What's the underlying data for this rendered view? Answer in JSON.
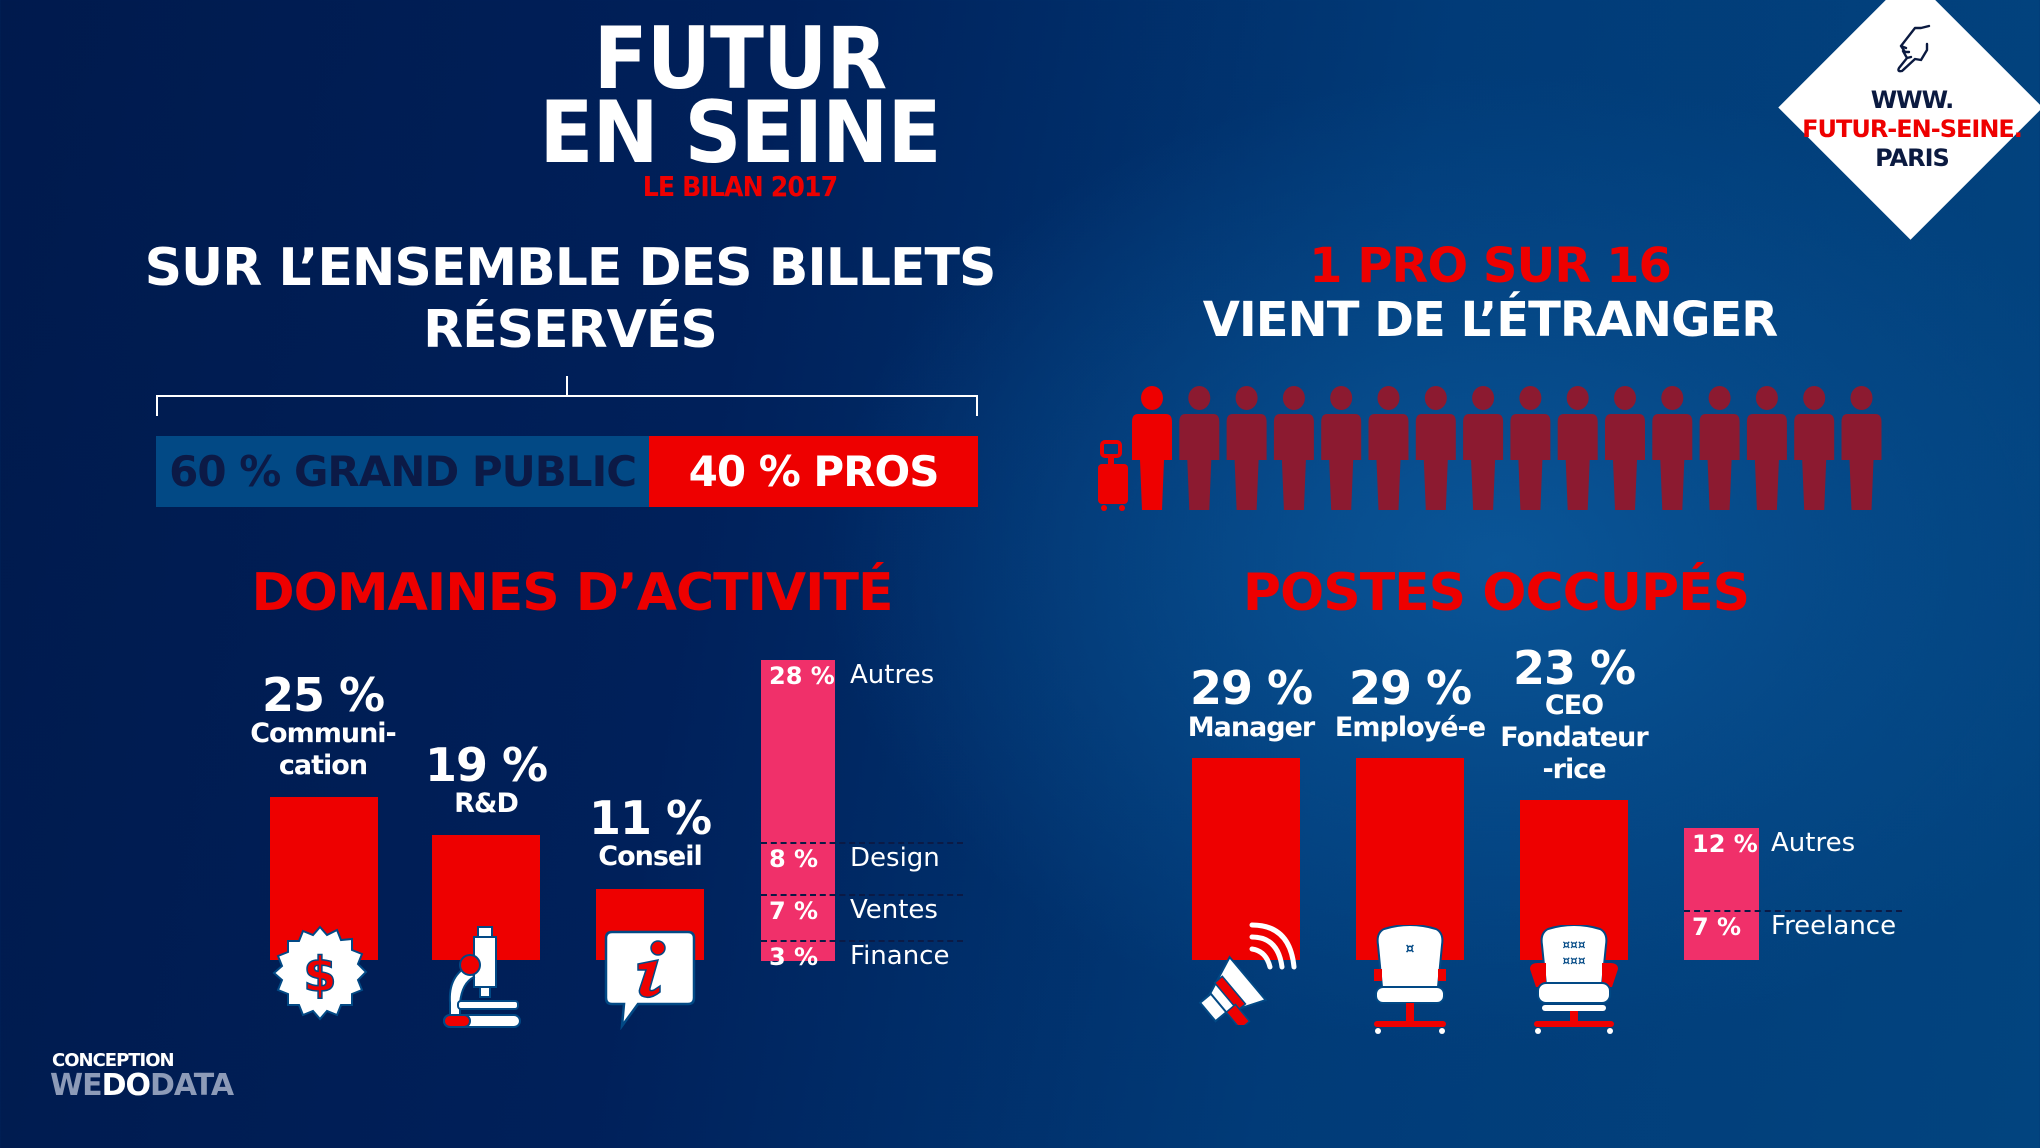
{
  "header": {
    "title_line_1": "FUTUR",
    "title_line_2": "EN SEINE",
    "subtitle": "LE BILAN 2017"
  },
  "website_badge": {
    "icon": "pointing-hand-icon",
    "line_1": "WWW.",
    "line_2": "FUTUR-EN-SEINE.",
    "line_3": "PARIS"
  },
  "billets": {
    "heading_line_1": "SUR L’ENSEMBLE DES BILLETS",
    "heading_line_2": "RÉSERVÉS",
    "segments": [
      {
        "label": "60 % GRAND PUBLIC",
        "value": 60,
        "color": "#024985"
      },
      {
        "label": "40 % PROS",
        "value": 40,
        "color": "#ee0000"
      }
    ]
  },
  "foreign": {
    "line_1": "1 PRO SUR 16",
    "line_2": "VIENT DE L’ÉTRANGER",
    "highlighted": 1,
    "total": 16,
    "icon": "suitcase-icon",
    "colors": {
      "highlight": "#ee0000",
      "other": "#8c1a30"
    }
  },
  "domaines": {
    "heading": "DOMAINES D’ACTIVITÉ",
    "bars": [
      {
        "pct": "25 %",
        "label_lines": [
          "Communi-",
          "cation"
        ],
        "value": 25,
        "icon": "dollar-badge-icon"
      },
      {
        "pct": "19 %",
        "label_lines": [
          "R&D"
        ],
        "value": 19,
        "icon": "microscope-icon"
      },
      {
        "pct": "11 %",
        "label_lines": [
          "Conseil"
        ],
        "value": 11,
        "icon": "info-bubble-icon"
      }
    ],
    "stack": [
      {
        "pct": "28 %",
        "label": "Autres",
        "value": 28
      },
      {
        "pct": "8 %",
        "label": "Design",
        "value": 8
      },
      {
        "pct": "7 %",
        "label": "Ventes",
        "value": 7
      },
      {
        "pct": "3 %",
        "label": "Finance",
        "value": 3
      }
    ]
  },
  "postes": {
    "heading": "POSTES OCCUPÉS",
    "bars": [
      {
        "pct": "29 %",
        "label_lines": [
          "Manager"
        ],
        "value": 29,
        "icon": "megaphone-icon"
      },
      {
        "pct": "29 %",
        "label_lines": [
          "Employé-e"
        ],
        "value": 29,
        "icon": "office-chair-icon"
      },
      {
        "pct": "23 %",
        "label_lines": [
          "CEO",
          "Fondateur",
          "-rice"
        ],
        "value": 23,
        "icon": "executive-chair-icon"
      }
    ],
    "stack": [
      {
        "pct": "12 %",
        "label": "Autres",
        "value": 12
      },
      {
        "pct": "7 %",
        "label": "Freelance",
        "value": 7
      }
    ]
  },
  "credits": {
    "label": "CONCEPTION",
    "brand_parts": [
      "WE",
      "DO",
      "DATA"
    ]
  },
  "colors": {
    "red": "#ee0000",
    "pink": "#f0306a",
    "navy": "#001a4d",
    "blue": "#024985",
    "dark_text": "#0b1a40"
  },
  "chart_data": [
    {
      "type": "bar",
      "title": "DOMAINES D’ACTIVITÉ",
      "categories": [
        "Communication",
        "R&D",
        "Conseil",
        "Autres (Autres, Design, Ventes, Finance)"
      ],
      "values": [
        25,
        19,
        11,
        46
      ],
      "stacked_breakdown": {
        "Autres": 28,
        "Design": 8,
        "Ventes": 7,
        "Finance": 3
      },
      "unit": "%"
    },
    {
      "type": "bar",
      "title": "POSTES OCCUPÉS",
      "categories": [
        "Manager",
        "Employé-e",
        "CEO Fondateur-rice",
        "Autres/Freelance"
      ],
      "values": [
        29,
        29,
        23,
        19
      ],
      "stacked_breakdown": {
        "Autres": 12,
        "Freelance": 7
      },
      "unit": "%"
    },
    {
      "type": "bar",
      "title": "SUR L’ENSEMBLE DES BILLETS RÉSERVÉS",
      "categories": [
        "GRAND PUBLIC",
        "PROS"
      ],
      "values": [
        60,
        40
      ],
      "unit": "%"
    }
  ]
}
